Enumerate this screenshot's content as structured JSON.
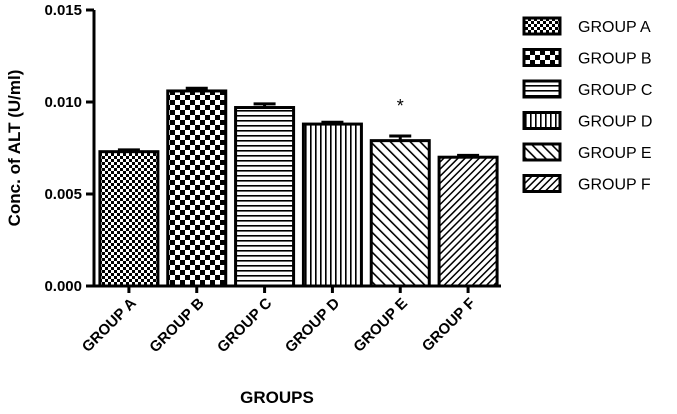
{
  "chart_data": {
    "type": "bar",
    "categories": [
      "GROUP A",
      "GROUP B",
      "GROUP C",
      "GROUP D",
      "GROUP E",
      "GROUP F"
    ],
    "values": [
      0.0073,
      0.0106,
      0.0097,
      0.0088,
      0.0079,
      0.007
    ],
    "errors": [
      0.0001,
      0.00015,
      0.0002,
      0.0001,
      0.00025,
      0.0001
    ],
    "xlabel": "GROUPS",
    "ylabel": "Conc. of ALT (U/ml)",
    "ylim": [
      0,
      0.015
    ],
    "yticks": [
      "0.000",
      "0.005",
      "0.010",
      "0.015"
    ],
    "ytick_values": [
      0,
      0.005,
      0.01,
      0.015
    ],
    "legend": [
      "GROUP A",
      "GROUP B",
      "GROUP C",
      "GROUP D",
      "GROUP E",
      "GROUP F"
    ],
    "legend_position": "right",
    "patterns": [
      "small-checker",
      "large-checker",
      "horizontal-lines",
      "vertical-lines",
      "forward-diagonal",
      "backward-diagonal"
    ],
    "annotations": [
      {
        "category": "GROUP E",
        "text": "*"
      }
    ],
    "grid": false
  }
}
